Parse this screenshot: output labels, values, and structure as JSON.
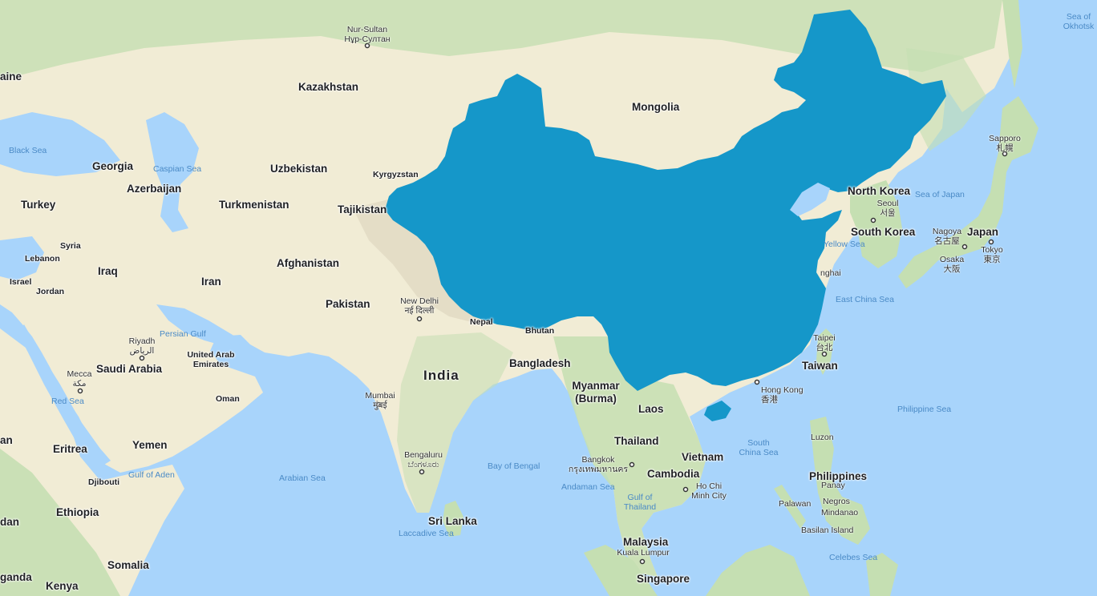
{
  "map": {
    "highlighted_country": "China",
    "colors": {
      "water": "#a8d4fb",
      "land": "#f1ecd5",
      "land_green": "#c5dfb2",
      "mountains": "#e2dcc4",
      "highlight": "#1597c9"
    }
  },
  "countries": {
    "kazakhstan": "Kazakhstan",
    "mongolia": "Mongolia",
    "ukraine_partial": "aine",
    "georgia": "Georgia",
    "azerbaijan": "Azerbaijan",
    "turkey": "Turkey",
    "uzbekistan": "Uzbekistan",
    "kyrgyzstan": "Kyrgyzstan",
    "turkmenistan": "Turkmenistan",
    "tajikistan": "Tajikistan",
    "syria": "Syria",
    "lebanon": "Lebanon",
    "iraq": "Iraq",
    "israel": "Israel",
    "jordan": "Jordan",
    "iran": "Iran",
    "afghanistan": "Afghanistan",
    "pakistan": "Pakistan",
    "nepal": "Nepal",
    "bhutan": "Bhutan",
    "india": "India",
    "bangladesh": "Bangladesh",
    "myanmar_1": "Myanmar",
    "myanmar_2": "(Burma)",
    "saudi_arabia": "Saudi Arabia",
    "uae_1": "United Arab",
    "uae_2": "Emirates",
    "oman": "Oman",
    "yemen": "Yemen",
    "eritrea": "Eritrea",
    "djibouti": "Djibouti",
    "ethiopia": "Ethiopia",
    "somalia": "Somalia",
    "kenya": "Kenya",
    "uganda_partial": "ganda",
    "sudan_partial": "an",
    "south_sudan_partial": "dan",
    "laos": "Laos",
    "thailand": "Thailand",
    "vietnam": "Vietnam",
    "cambodia": "Cambodia",
    "malaysia": "Malaysia",
    "singapore": "Singapore",
    "sri_lanka": "Sri Lanka",
    "north_korea": "North Korea",
    "south_korea": "South Korea",
    "japan": "Japan",
    "taiwan": "Taiwan",
    "philippines": "Philippines"
  },
  "cities": {
    "nur_sultan": "Nur-Sultan",
    "nur_sultan_local": "Нұр-Султан",
    "new_delhi": "New Delhi",
    "new_delhi_local": "नई दिल्ली",
    "mumbai": "Mumbai",
    "mumbai_local": "मुंबई",
    "bengaluru": "Bengaluru",
    "bengaluru_local": "ಬೆಂಗಳೂರು",
    "riyadh": "Riyadh",
    "riyadh_local": "الرياض",
    "mecca": "Mecca",
    "mecca_local": "مكة",
    "seoul": "Seoul",
    "seoul_local": "서울",
    "sapporo": "Sapporo",
    "sapporo_local": "札幌",
    "nagoya": "Nagoya",
    "nagoya_local": "名古屋",
    "osaka": "Osaka",
    "osaka_local": "大阪",
    "tokyo": "Tokyo",
    "tokyo_local": "東京",
    "shanghai_partial": "nghai",
    "taipei": "Taipei",
    "taipei_local": "台北",
    "hong_kong": "Hong Kong",
    "hong_kong_local": "香港",
    "bangkok": "Bangkok",
    "bangkok_local": "กรุงเทพมหานคร",
    "ho_chi_minh_1": "Ho Chi",
    "ho_chi_minh_2": "Minh City",
    "kuala_lumpur": "Kuala Lumpur",
    "luzon": "Luzon",
    "panay": "Panay",
    "negros": "Negros",
    "mindanao": "Mindanao",
    "palawan": "Palawan",
    "basilan": "Basilan Island"
  },
  "seas": {
    "sea_of_okhotsk_1": "Sea of",
    "sea_of_okhotsk_2": "Okhotsk",
    "black_sea": "Black Sea",
    "caspian_sea": "Caspian Sea",
    "sea_of_japan": "Sea of Japan",
    "yellow_sea": "Yellow Sea",
    "east_china_sea": "East China Sea",
    "persian_gulf": "Persian Gulf",
    "red_sea": "Red Sea",
    "gulf_of_aden": "Gulf of Aden",
    "arabian_sea": "Arabian Sea",
    "bay_of_bengal": "Bay of Bengal",
    "andaman_sea": "Andaman Sea",
    "gulf_of_thailand_1": "Gulf of",
    "gulf_of_thailand_2": "Thailand",
    "south_china_sea_1": "South",
    "south_china_sea_2": "China Sea",
    "philippine_sea": "Philippine Sea",
    "laccadive_sea": "Laccadive Sea",
    "celebes_sea": "Celebes Sea"
  }
}
